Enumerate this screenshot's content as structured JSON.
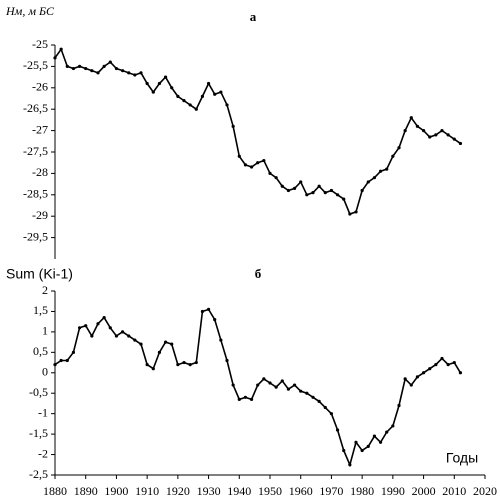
{
  "chart_data": [
    {
      "type": "line",
      "title": "а",
      "y_label": "Hм, м БС",
      "color": "#000000",
      "xlim": [
        1880,
        2020
      ],
      "ylim": [
        -30,
        -25
      ],
      "yticks": [
        {
          "value": -25,
          "label": "-25"
        },
        {
          "value": -25.5,
          "label": "-25,5"
        },
        {
          "value": -26,
          "label": "-26"
        },
        {
          "value": -26.5,
          "label": "-26,5"
        },
        {
          "value": -27,
          "label": "-27"
        },
        {
          "value": -27.5,
          "label": "-27,5"
        },
        {
          "value": -28,
          "label": "-28"
        },
        {
          "value": -28.5,
          "label": "-28,5"
        },
        {
          "value": -29,
          "label": "-29"
        },
        {
          "value": -29.5,
          "label": "-29,5"
        }
      ],
      "x": [
        1880,
        1882,
        1884,
        1886,
        1888,
        1890,
        1892,
        1894,
        1896,
        1898,
        1900,
        1902,
        1904,
        1906,
        1908,
        1910,
        1912,
        1914,
        1916,
        1918,
        1920,
        1922,
        1924,
        1926,
        1928,
        1930,
        1932,
        1934,
        1936,
        1938,
        1940,
        1942,
        1944,
        1946,
        1948,
        1950,
        1952,
        1954,
        1956,
        1958,
        1960,
        1962,
        1964,
        1966,
        1968,
        1970,
        1972,
        1974,
        1976,
        1978,
        1980,
        1982,
        1984,
        1986,
        1988,
        1990,
        1992,
        1994,
        1996,
        1998,
        2000,
        2002,
        2004,
        2006,
        2008,
        2010,
        2012
      ],
      "values": [
        -25.3,
        -25.1,
        -25.5,
        -25.55,
        -25.5,
        -25.55,
        -25.6,
        -25.65,
        -25.5,
        -25.4,
        -25.55,
        -25.6,
        -25.65,
        -25.7,
        -25.65,
        -25.9,
        -26.1,
        -25.9,
        -25.75,
        -26.0,
        -26.2,
        -26.3,
        -26.4,
        -26.5,
        -26.2,
        -25.9,
        -26.15,
        -26.1,
        -26.4,
        -26.9,
        -27.6,
        -27.8,
        -27.85,
        -27.75,
        -27.7,
        -28.0,
        -28.1,
        -28.3,
        -28.4,
        -28.35,
        -28.2,
        -28.5,
        -28.45,
        -28.3,
        -28.45,
        -28.4,
        -28.5,
        -28.6,
        -28.95,
        -28.9,
        -28.4,
        -28.2,
        -28.1,
        -27.95,
        -27.9,
        -27.6,
        -27.4,
        -27.0,
        -26.7,
        -26.9,
        -27.0,
        -27.15,
        -27.1,
        -27.0,
        -27.1,
        -27.2,
        -27.3
      ]
    },
    {
      "type": "line",
      "title": "б",
      "y_label": "Sum (Ki-1)",
      "x_label": "Годы",
      "color": "#000000",
      "xlim": [
        1880,
        2020
      ],
      "ylim": [
        -2.5,
        2
      ],
      "xticks": [
        1880,
        1890,
        1900,
        1910,
        1920,
        1930,
        1940,
        1950,
        1960,
        1970,
        1980,
        1990,
        2000,
        2010,
        2020
      ],
      "yticks": [
        2,
        {
          "value": 1.5,
          "label": "1,5"
        },
        1,
        {
          "value": 0.5,
          "label": "0,5"
        },
        0,
        {
          "value": -0.5,
          "label": "-0,5"
        },
        -1,
        {
          "value": -1.5,
          "label": "-1,5"
        },
        -2,
        {
          "value": -2.5,
          "label": "-2,5"
        }
      ],
      "x": [
        1880,
        1882,
        1884,
        1886,
        1888,
        1890,
        1892,
        1894,
        1896,
        1898,
        1900,
        1902,
        1904,
        1906,
        1908,
        1910,
        1912,
        1914,
        1916,
        1918,
        1920,
        1922,
        1924,
        1926,
        1928,
        1930,
        1932,
        1934,
        1936,
        1938,
        1940,
        1942,
        1944,
        1946,
        1948,
        1950,
        1952,
        1954,
        1956,
        1958,
        1960,
        1962,
        1964,
        1966,
        1968,
        1970,
        1972,
        1974,
        1976,
        1978,
        1980,
        1982,
        1984,
        1986,
        1988,
        1990,
        1992,
        1994,
        1996,
        1998,
        2000,
        2002,
        2004,
        2006,
        2008,
        2010,
        2012
      ],
      "values": [
        0.2,
        0.3,
        0.3,
        0.5,
        1.1,
        1.15,
        0.9,
        1.2,
        1.35,
        1.1,
        0.9,
        1.0,
        0.9,
        0.8,
        0.7,
        0.2,
        0.1,
        0.5,
        0.75,
        0.7,
        0.2,
        0.25,
        0.2,
        0.25,
        1.5,
        1.55,
        1.3,
        0.8,
        0.3,
        -0.3,
        -0.65,
        -0.6,
        -0.65,
        -0.3,
        -0.15,
        -0.25,
        -0.35,
        -0.2,
        -0.4,
        -0.3,
        -0.45,
        -0.5,
        -0.6,
        -0.7,
        -0.85,
        -1.0,
        -1.4,
        -1.9,
        -2.25,
        -1.7,
        -1.9,
        -1.8,
        -1.55,
        -1.7,
        -1.45,
        -1.3,
        -0.8,
        -0.15,
        -0.3,
        -0.1,
        0.0,
        0.1,
        0.2,
        0.35,
        0.2,
        0.25,
        0.0
      ]
    }
  ]
}
